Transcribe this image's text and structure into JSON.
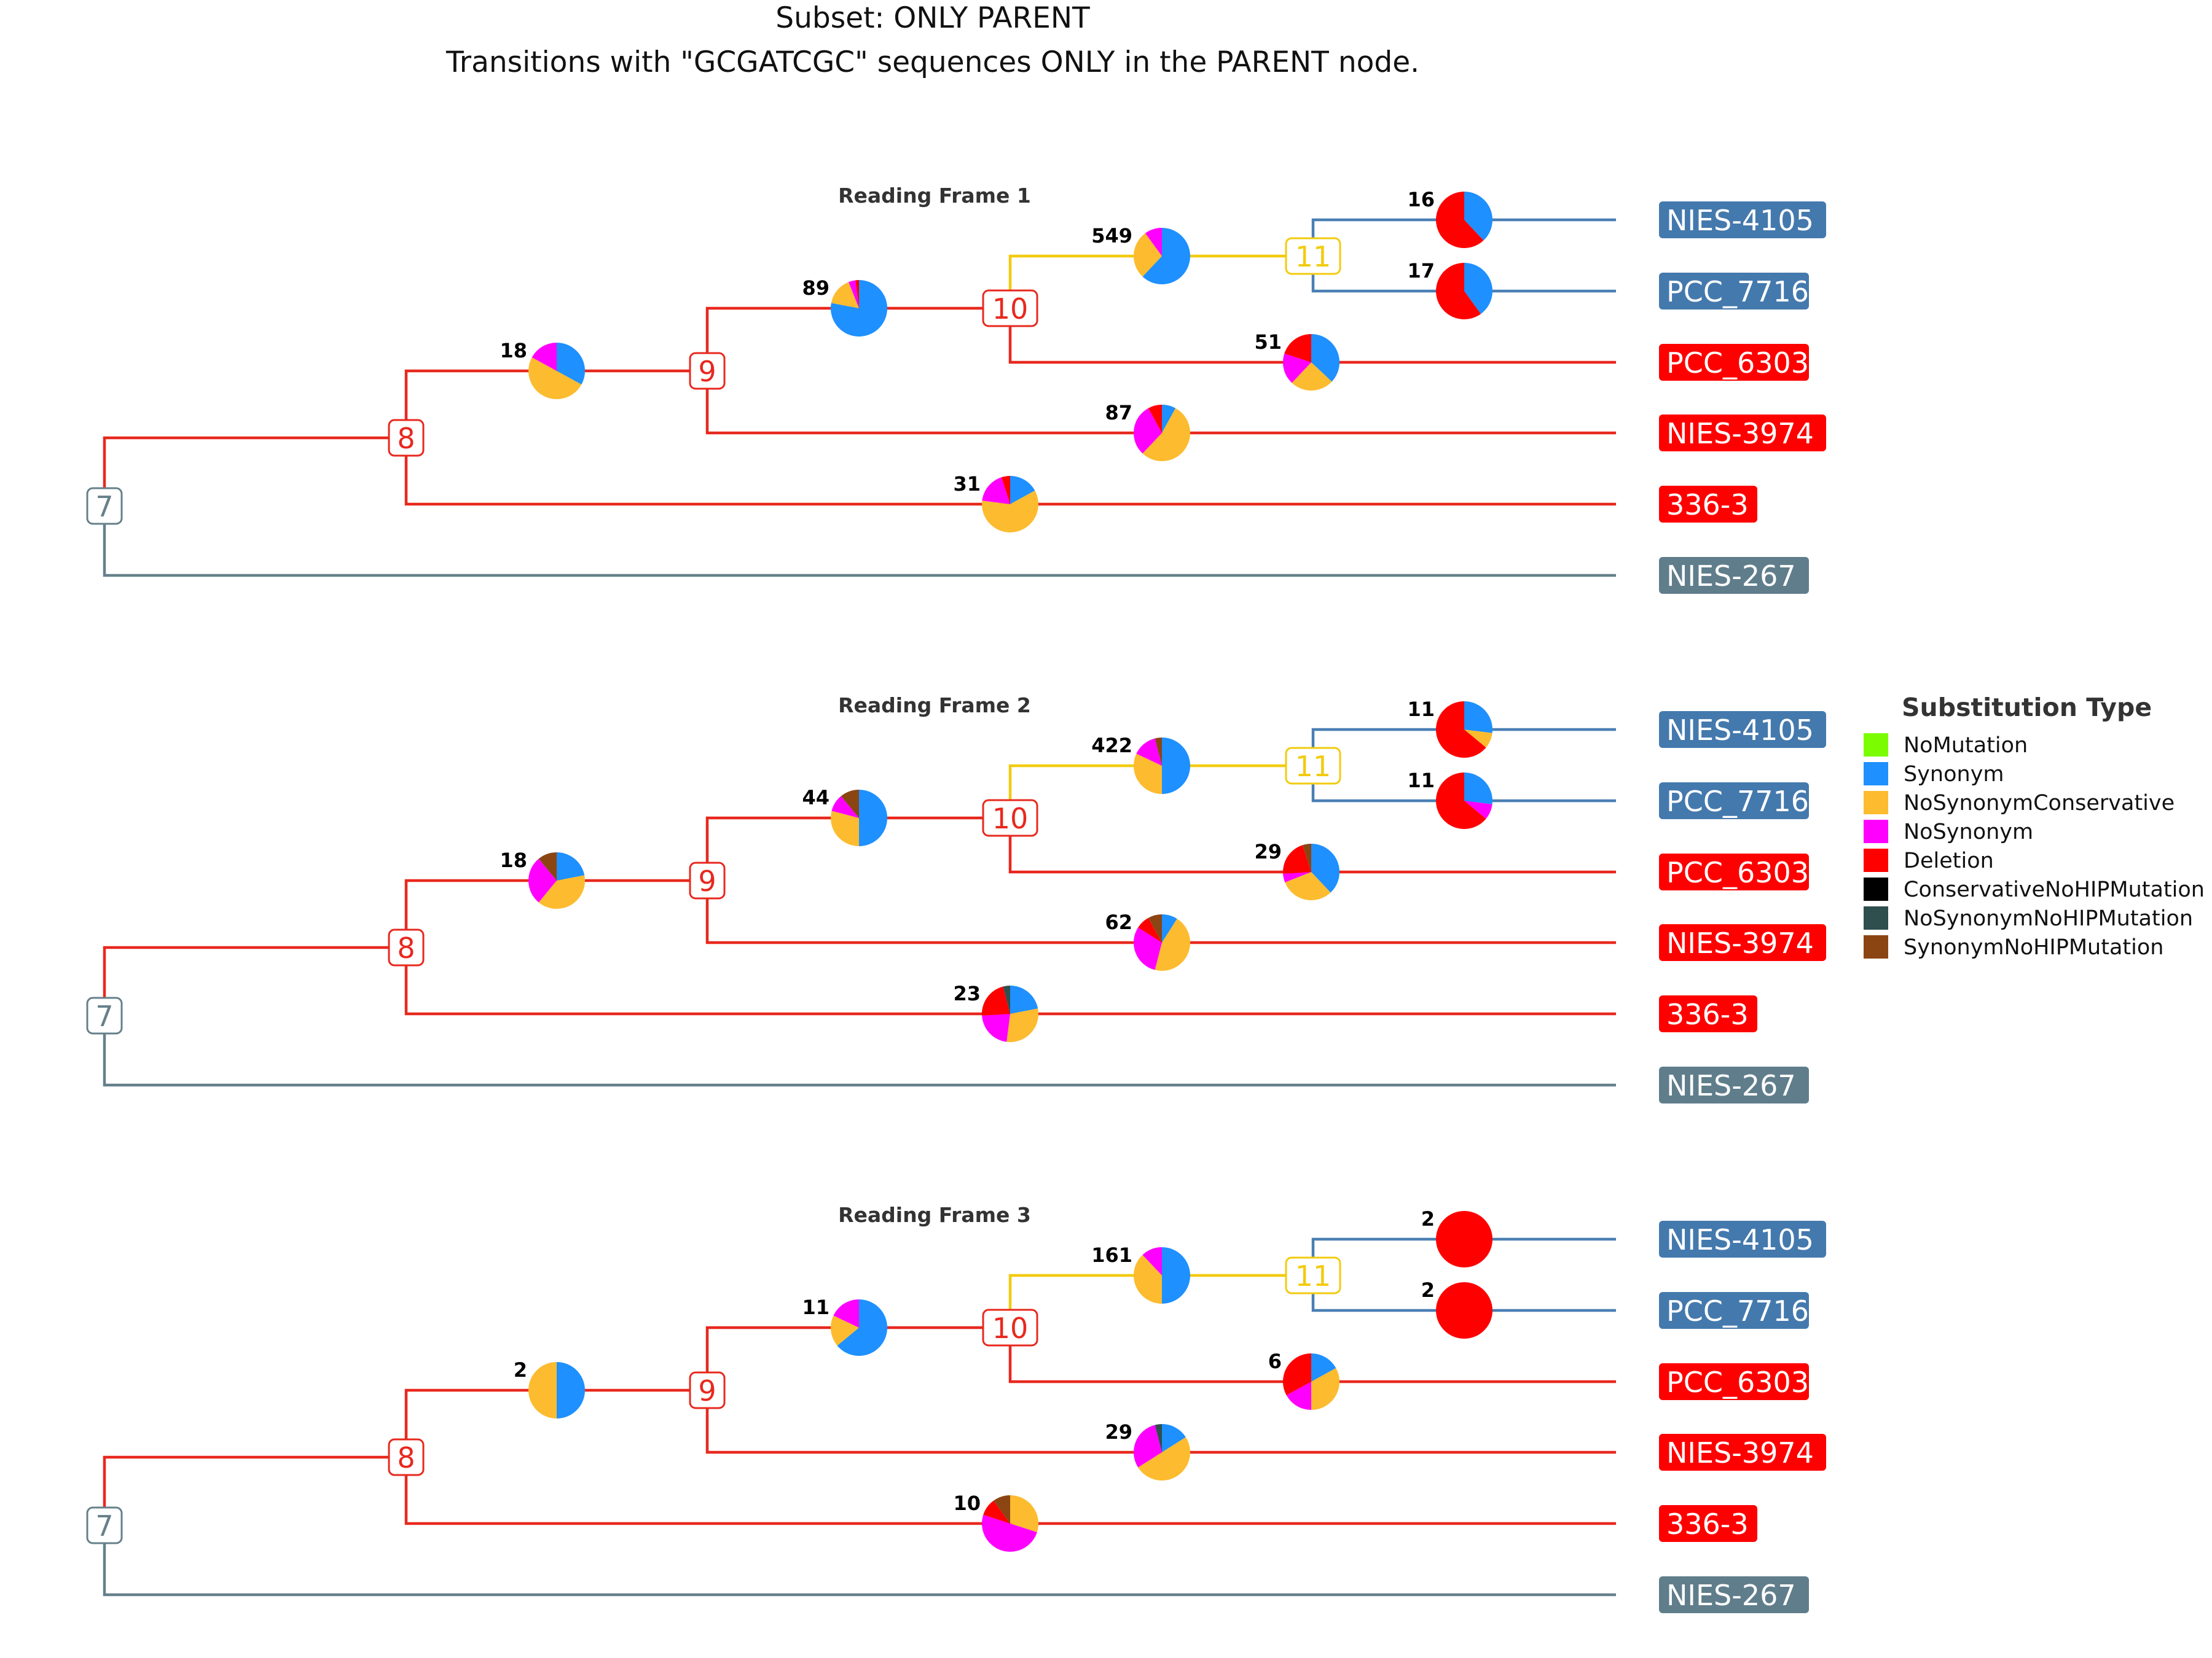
{
  "title_line1": "Subset: ONLY PARENT",
  "title_line2": "Transitions with \"GCGATCGC\" sequences ONLY in the PARENT node.",
  "colors": {
    "NoMutation": "#7cfc00",
    "Synonym": "#1e90ff",
    "NoSynonymConservative": "#fdbb2f",
    "NoSynonym": "#ff00ff",
    "Deletion": "#ff0000",
    "ConservativeNoHIPMutation": "#000000",
    "NoSynonymNoHIPMutation": "#2f4f4f",
    "SynonymNoHIPMutation": "#8b4513",
    "branch_red": "#e8281e",
    "branch_blue": "#4a7fb5",
    "branch_gold": "#f2cb0f",
    "branch_gray": "#66808a",
    "tip_blue": "#4479ad",
    "tip_red": "#ff0000",
    "tip_gray": "#607d8b"
  },
  "legend": {
    "title": "Substitution Type",
    "items": [
      {
        "label": "NoMutation",
        "color": "#7cfc00"
      },
      {
        "label": "Synonym",
        "color": "#1e90ff"
      },
      {
        "label": "NoSynonymConservative",
        "color": "#fdbb2f"
      },
      {
        "label": "NoSynonym",
        "color": "#ff00ff"
      },
      {
        "label": "Deletion",
        "color": "#ff0000"
      },
      {
        "label": "ConservativeNoHIPMutation",
        "color": "#000000"
      },
      {
        "label": "NoSynonymNoHIPMutation",
        "color": "#2f4f4f"
      },
      {
        "label": "SynonymNoHIPMutation",
        "color": "#8b4513"
      }
    ]
  },
  "tree": {
    "internal_nodes": [
      "7",
      "8",
      "9",
      "10",
      "11"
    ],
    "tips": [
      {
        "label": "NIES-4105",
        "color": "#4479ad"
      },
      {
        "label": "PCC_7716",
        "color": "#4479ad"
      },
      {
        "label": "PCC_6303",
        "color": "#ff0000"
      },
      {
        "label": "NIES-3974",
        "color": "#ff0000"
      },
      {
        "label": "336-3",
        "color": "#ff0000"
      },
      {
        "label": "NIES-267",
        "color": "#607d8b"
      }
    ]
  },
  "panels": [
    {
      "title": "Reading Frame 1",
      "pies": {
        "b8_9": {
          "count": "18",
          "fractions": {
            "NoSynonymConservative": 0.5,
            "Synonym": 0.33,
            "NoSynonym": 0.17
          }
        },
        "b9_10": {
          "count": "89",
          "fractions": {
            "Synonym": 0.78,
            "NoSynonymConservative": 0.16,
            "NoSynonym": 0.04,
            "Deletion": 0.02
          }
        },
        "b10_11": {
          "count": "549",
          "fractions": {
            "Synonym": 0.62,
            "NoSynonymConservative": 0.28,
            "NoSynonym": 0.1
          }
        },
        "bNIES4105": {
          "count": "16",
          "fractions": {
            "Deletion": 0.62,
            "Synonym": 0.38
          }
        },
        "bPCC7716": {
          "count": "17",
          "fractions": {
            "Deletion": 0.6,
            "Synonym": 0.4
          }
        },
        "bPCC6303": {
          "count": "51",
          "fractions": {
            "Synonym": 0.37,
            "NoSynonymConservative": 0.25,
            "Deletion": 0.2,
            "NoSynonym": 0.18
          }
        },
        "bNIES3974": {
          "count": "87",
          "fractions": {
            "NoSynonymConservative": 0.54,
            "NoSynonym": 0.3,
            "Deletion": 0.08,
            "Synonym": 0.08
          }
        },
        "b336": {
          "count": "31",
          "fractions": {
            "NoSynonymConservative": 0.6,
            "NoSynonym": 0.18,
            "Synonym": 0.17,
            "Deletion": 0.05
          }
        }
      }
    },
    {
      "title": "Reading Frame 2",
      "pies": {
        "b8_9": {
          "count": "18",
          "fractions": {
            "NoSynonymConservative": 0.39,
            "NoSynonym": 0.28,
            "Synonym": 0.22,
            "SynonymNoHIPMutation": 0.11
          }
        },
        "b9_10": {
          "count": "44",
          "fractions": {
            "Synonym": 0.5,
            "NoSynonymConservative": 0.29,
            "SynonymNoHIPMutation": 0.11,
            "NoSynonym": 0.1
          }
        },
        "b10_11": {
          "count": "422",
          "fractions": {
            "Synonym": 0.5,
            "NoSynonymConservative": 0.32,
            "NoSynonym": 0.14,
            "SynonymNoHIPMutation": 0.04
          }
        },
        "bNIES4105": {
          "count": "11",
          "fractions": {
            "Deletion": 0.64,
            "Synonym": 0.27,
            "NoSynonymConservative": 0.09
          }
        },
        "bPCC7716": {
          "count": "11",
          "fractions": {
            "Deletion": 0.64,
            "Synonym": 0.27,
            "NoSynonym": 0.09
          }
        },
        "bPCC6303": {
          "count": "29",
          "fractions": {
            "Synonym": 0.38,
            "NoSynonymConservative": 0.31,
            "Deletion": 0.21,
            "SynonymNoHIPMutation": 0.05,
            "NoSynonym": 0.05
          }
        },
        "bNIES3974": {
          "count": "62",
          "fractions": {
            "NoSynonymConservative": 0.45,
            "NoSynonym": 0.3,
            "Deletion": 0.08,
            "Synonym": 0.09,
            "SynonymNoHIPMutation": 0.08
          }
        },
        "b336": {
          "count": "23",
          "fractions": {
            "NoSynonymConservative": 0.3,
            "Deletion": 0.22,
            "NoSynonym": 0.22,
            "Synonym": 0.22,
            "NoSynonymNoHIPMutation": 0.04
          }
        }
      }
    },
    {
      "title": "Reading Frame 3",
      "pies": {
        "b8_9": {
          "count": "2",
          "fractions": {
            "NoSynonymConservative": 0.5,
            "Synonym": 0.5
          }
        },
        "b9_10": {
          "count": "11",
          "fractions": {
            "Synonym": 0.64,
            "NoSynonym": 0.18,
            "NoSynonymConservative": 0.18
          }
        },
        "b10_11": {
          "count": "161",
          "fractions": {
            "Synonym": 0.5,
            "NoSynonymConservative": 0.38,
            "NoSynonym": 0.12
          }
        },
        "bNIES4105": {
          "count": "2",
          "fractions": {
            "Deletion": 1.0
          }
        },
        "bPCC7716": {
          "count": "2",
          "fractions": {
            "Deletion": 1.0
          }
        },
        "bPCC6303": {
          "count": "6",
          "fractions": {
            "Deletion": 0.33,
            "NoSynonymConservative": 0.33,
            "NoSynonym": 0.17,
            "Synonym": 0.17
          }
        },
        "bNIES3974": {
          "count": "29",
          "fractions": {
            "NoSynonymConservative": 0.5,
            "NoSynonym": 0.3,
            "Synonym": 0.16,
            "NoSynonymNoHIPMutation": 0.04
          }
        },
        "b336": {
          "count": "10",
          "fractions": {
            "NoSynonym": 0.5,
            "NoSynonymConservative": 0.3,
            "Deletion": 0.1,
            "SynonymNoHIPMutation": 0.1
          }
        }
      }
    }
  ]
}
